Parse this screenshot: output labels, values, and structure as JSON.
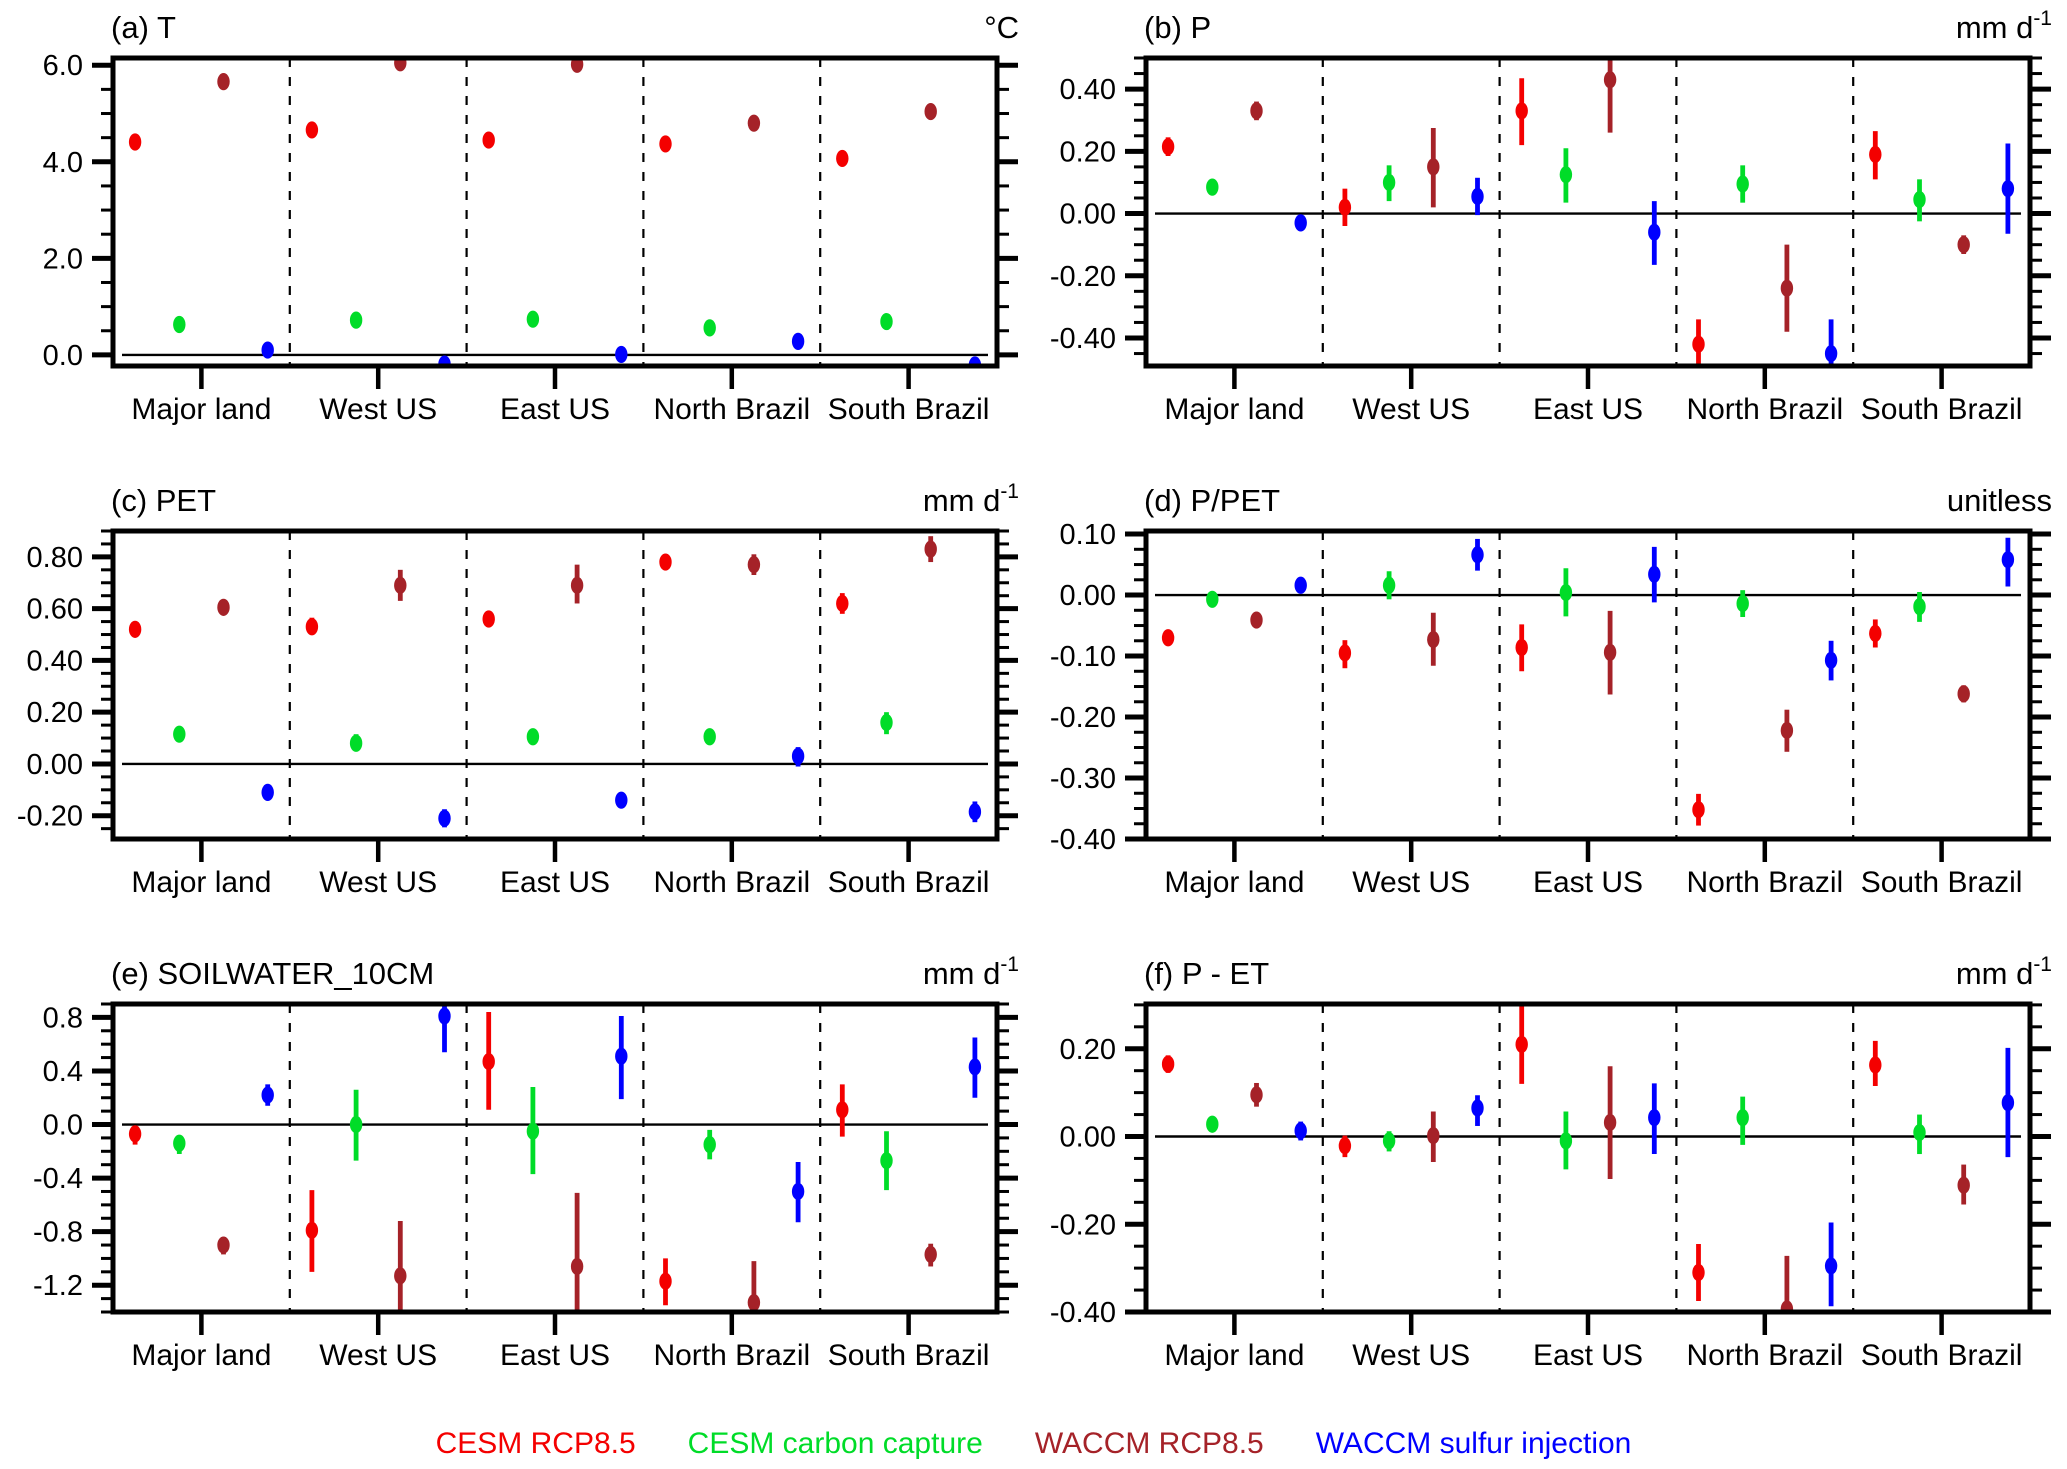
{
  "legend": {
    "items": [
      {
        "label": "CESM RCP8.5",
        "color": "#F40000"
      },
      {
        "label": "CESM carbon capture",
        "color": "#00DC28"
      },
      {
        "label": "WACCM RCP8.5",
        "color": "#A52228"
      },
      {
        "label": "WACCM sulfur injection",
        "color": "#0000FF"
      }
    ]
  },
  "chart_data": {
    "type": "scatter",
    "subtype": "multi-panel point-with-error-bar anomaly plot",
    "legend_position": "bottom",
    "grid": false,
    "categories": [
      "Major land",
      "West US",
      "East US",
      "North Brazil",
      "South Brazil"
    ],
    "series_names": [
      "CESM RCP8.5",
      "CESM carbon capture",
      "WACCM RCP8.5",
      "WACCM sulfur injection"
    ],
    "series_colors": [
      "#F40000",
      "#00DC28",
      "#A52228",
      "#0000FF"
    ],
    "panels": [
      {
        "id": "a",
        "title": "(a) T",
        "unit": "°C",
        "unit_sup": "",
        "ylim": [
          -0.23,
          6.15
        ],
        "yticks": [
          0.0,
          2.0,
          4.0,
          6.0
        ],
        "ytick_labels": [
          "0.0",
          "2.0",
          "4.0",
          "6.0"
        ],
        "yminor_step": 0.5,
        "series": [
          {
            "name": "CESM RCP8.5",
            "color": "#F40000",
            "points": [
              [
                4.41,
                4.32,
                4.5
              ],
              [
                4.66,
                4.52,
                4.8
              ],
              [
                4.45,
                4.34,
                4.56
              ],
              [
                4.37,
                4.26,
                4.48
              ],
              [
                4.07,
                3.95,
                4.19
              ]
            ]
          },
          {
            "name": "CESM carbon capture",
            "color": "#00DC28",
            "points": [
              [
                0.63,
                0.54,
                0.72
              ],
              [
                0.72,
                0.6,
                0.84
              ],
              [
                0.74,
                0.63,
                0.85
              ],
              [
                0.56,
                0.47,
                0.65
              ],
              [
                0.69,
                0.57,
                0.81
              ]
            ]
          },
          {
            "name": "WACCM RCP8.5",
            "color": "#A52228",
            "points": [
              [
                5.66,
                5.57,
                5.75
              ],
              [
                6.05,
                5.92,
                6.18
              ],
              [
                6.02,
                5.87,
                6.18
              ],
              [
                4.8,
                4.7,
                4.9
              ],
              [
                5.04,
                4.91,
                5.17
              ]
            ]
          },
          {
            "name": "WACCM sulfur injection",
            "color": "#0000FF",
            "points": [
              [
                0.1,
                0.02,
                0.18
              ],
              [
                -0.19,
                -0.26,
                -0.08
              ],
              [
                0.01,
                -0.09,
                0.11
              ],
              [
                0.28,
                0.19,
                0.38
              ],
              [
                -0.21,
                -0.29,
                -0.11
              ]
            ]
          }
        ]
      },
      {
        "id": "b",
        "title": "(b) P",
        "unit": "mm d",
        "unit_sup": "-1",
        "ylim": [
          -0.49,
          0.5
        ],
        "yticks": [
          -0.4,
          -0.2,
          0.0,
          0.2,
          0.4
        ],
        "ytick_labels": [
          "-0.40",
          "-0.20",
          "0.00",
          "0.20",
          "0.40"
        ],
        "yminor_step": 0.05,
        "series": [
          {
            "name": "CESM RCP8.5",
            "color": "#F40000",
            "points": [
              [
                0.215,
                0.185,
                0.245
              ],
              [
                0.02,
                -0.04,
                0.08
              ],
              [
                0.33,
                0.22,
                0.435
              ],
              [
                -0.42,
                -0.505,
                -0.34
              ],
              [
                0.19,
                0.11,
                0.265
              ]
            ]
          },
          {
            "name": "CESM carbon capture",
            "color": "#00DC28",
            "points": [
              [
                0.085,
                0.065,
                0.105
              ],
              [
                0.1,
                0.04,
                0.155
              ],
              [
                0.125,
                0.035,
                0.21
              ],
              [
                0.095,
                0.035,
                0.155
              ],
              [
                0.045,
                -0.025,
                0.11
              ]
            ]
          },
          {
            "name": "WACCM RCP8.5",
            "color": "#A52228",
            "points": [
              [
                0.33,
                0.3,
                0.36
              ],
              [
                0.15,
                0.02,
                0.275
              ],
              [
                0.43,
                0.26,
                0.51
              ],
              [
                -0.24,
                -0.38,
                -0.1
              ],
              [
                -0.1,
                -0.13,
                -0.07
              ]
            ]
          },
          {
            "name": "WACCM sulfur injection",
            "color": "#0000FF",
            "points": [
              [
                -0.03,
                -0.055,
                -0.005
              ],
              [
                0.055,
                -0.005,
                0.115
              ],
              [
                -0.06,
                -0.165,
                0.04
              ],
              [
                -0.45,
                -0.52,
                -0.34
              ],
              [
                0.08,
                -0.065,
                0.225
              ]
            ]
          }
        ]
      },
      {
        "id": "c",
        "title": "(c) PET",
        "unit": "mm d",
        "unit_sup": "-1",
        "ylim": [
          -0.29,
          0.9
        ],
        "yticks": [
          -0.2,
          0.0,
          0.2,
          0.4,
          0.6,
          0.8
        ],
        "ytick_labels": [
          "-0.20",
          "0.00",
          "0.20",
          "0.40",
          "0.60",
          "0.80"
        ],
        "yminor_step": 0.05,
        "series": [
          {
            "name": "CESM RCP8.5",
            "color": "#F40000",
            "points": [
              [
                0.52,
                0.49,
                0.55
              ],
              [
                0.53,
                0.5,
                0.565
              ],
              [
                0.56,
                0.53,
                0.59
              ],
              [
                0.78,
                0.75,
                0.81
              ],
              [
                0.62,
                0.58,
                0.66
              ]
            ]
          },
          {
            "name": "CESM carbon capture",
            "color": "#00DC28",
            "points": [
              [
                0.115,
                0.09,
                0.14
              ],
              [
                0.08,
                0.05,
                0.115
              ],
              [
                0.105,
                0.08,
                0.135
              ],
              [
                0.105,
                0.08,
                0.13
              ],
              [
                0.16,
                0.115,
                0.2
              ]
            ]
          },
          {
            "name": "WACCM RCP8.5",
            "color": "#A52228",
            "points": [
              [
                0.605,
                0.58,
                0.63
              ],
              [
                0.69,
                0.63,
                0.75
              ],
              [
                0.69,
                0.62,
                0.77
              ],
              [
                0.77,
                0.73,
                0.81
              ],
              [
                0.83,
                0.78,
                0.88
              ]
            ]
          },
          {
            "name": "WACCM sulfur injection",
            "color": "#0000FF",
            "points": [
              [
                -0.11,
                -0.135,
                -0.085
              ],
              [
                -0.21,
                -0.245,
                -0.175
              ],
              [
                -0.14,
                -0.17,
                -0.11
              ],
              [
                0.03,
                -0.01,
                0.065
              ],
              [
                -0.185,
                -0.225,
                -0.145
              ]
            ]
          }
        ]
      },
      {
        "id": "d",
        "title": "(d) P/PET",
        "unit": "unitless",
        "unit_sup": "",
        "ylim": [
          -0.4,
          0.105
        ],
        "yticks": [
          -0.4,
          -0.3,
          -0.2,
          -0.1,
          0.0,
          0.1
        ],
        "ytick_labels": [
          "-0.40",
          "-0.30",
          "-0.20",
          "-0.10",
          "0.00",
          "0.10"
        ],
        "yminor_step": 0.025,
        "series": [
          {
            "name": "CESM RCP8.5",
            "color": "#F40000",
            "points": [
              [
                -0.07,
                -0.082,
                -0.058
              ],
              [
                -0.095,
                -0.12,
                -0.074
              ],
              [
                -0.086,
                -0.125,
                -0.048
              ],
              [
                -0.352,
                -0.378,
                -0.326
              ],
              [
                -0.063,
                -0.086,
                -0.04
              ]
            ]
          },
          {
            "name": "CESM carbon capture",
            "color": "#00DC28",
            "points": [
              [
                -0.007,
                -0.018,
                0.004
              ],
              [
                0.016,
                -0.007,
                0.039
              ],
              [
                0.004,
                -0.035,
                0.044
              ],
              [
                -0.014,
                -0.036,
                0.008
              ],
              [
                -0.019,
                -0.044,
                0.005
              ]
            ]
          },
          {
            "name": "WACCM RCP8.5",
            "color": "#A52228",
            "points": [
              [
                -0.041,
                -0.053,
                -0.029
              ],
              [
                -0.073,
                -0.116,
                -0.029
              ],
              [
                -0.094,
                -0.163,
                -0.026
              ],
              [
                -0.222,
                -0.257,
                -0.188
              ],
              [
                -0.162,
                -0.176,
                -0.148
              ]
            ]
          },
          {
            "name": "WACCM sulfur injection",
            "color": "#0000FF",
            "points": [
              [
                0.016,
                0.005,
                0.027
              ],
              [
                0.066,
                0.04,
                0.092
              ],
              [
                0.034,
                -0.012,
                0.079
              ],
              [
                -0.107,
                -0.14,
                -0.075
              ],
              [
                0.058,
                0.014,
                0.094
              ]
            ]
          }
        ]
      },
      {
        "id": "e",
        "title": "(e) SOILWATER_10CM",
        "unit": "mm d",
        "unit_sup": "-1",
        "ylim": [
          -1.4,
          0.9
        ],
        "yticks": [
          -1.2,
          -0.8,
          -0.4,
          0.0,
          0.4,
          0.8
        ],
        "ytick_labels": [
          "-1.2",
          "-0.8",
          "-0.4",
          "0.0",
          "0.4",
          "0.8"
        ],
        "yminor_step": 0.1,
        "series": [
          {
            "name": "CESM RCP8.5",
            "color": "#F40000",
            "points": [
              [
                -0.07,
                -0.15,
                -0.01
              ],
              [
                -0.79,
                -1.1,
                -0.49
              ],
              [
                0.47,
                0.11,
                0.84
              ],
              [
                -1.17,
                -1.35,
                -1.0
              ],
              [
                0.11,
                -0.09,
                0.3
              ]
            ]
          },
          {
            "name": "CESM carbon capture",
            "color": "#00DC28",
            "points": [
              [
                -0.14,
                -0.22,
                -0.09
              ],
              [
                0.0,
                -0.27,
                0.26
              ],
              [
                -0.05,
                -0.37,
                0.28
              ],
              [
                -0.15,
                -0.26,
                -0.04
              ],
              [
                -0.27,
                -0.49,
                -0.05
              ]
            ]
          },
          {
            "name": "WACCM RCP8.5",
            "color": "#A52228",
            "points": [
              [
                -0.9,
                -0.97,
                -0.84
              ],
              [
                -1.13,
                -1.46,
                -0.72
              ],
              [
                -1.06,
                -1.46,
                -0.51
              ],
              [
                -1.33,
                -1.46,
                -1.02
              ],
              [
                -0.97,
                -1.06,
                -0.89
              ]
            ]
          },
          {
            "name": "WACCM sulfur injection",
            "color": "#0000FF",
            "points": [
              [
                0.22,
                0.14,
                0.3
              ],
              [
                0.81,
                0.54,
                0.93
              ],
              [
                0.51,
                0.19,
                0.81
              ],
              [
                -0.5,
                -0.73,
                -0.28
              ],
              [
                0.43,
                0.2,
                0.65
              ]
            ]
          }
        ]
      },
      {
        "id": "f",
        "title": "(f) P - ET",
        "unit": "mm d",
        "unit_sup": "-1",
        "ylim": [
          -0.4,
          0.302
        ],
        "yticks": [
          -0.4,
          -0.2,
          0.0,
          0.2
        ],
        "ytick_labels": [
          "-0.40",
          "-0.20",
          "0.00",
          "0.20"
        ],
        "yminor_step": 0.05,
        "series": [
          {
            "name": "CESM RCP8.5",
            "color": "#F40000",
            "points": [
              [
                0.165,
                0.145,
                0.185
              ],
              [
                -0.021,
                -0.047,
                0.002
              ],
              [
                0.21,
                0.12,
                0.31
              ],
              [
                -0.31,
                -0.375,
                -0.245
              ],
              [
                0.163,
                0.115,
                0.218
              ]
            ]
          },
          {
            "name": "CESM carbon capture",
            "color": "#00DC28",
            "points": [
              [
                0.028,
                0.013,
                0.042
              ],
              [
                -0.01,
                -0.034,
                0.012
              ],
              [
                -0.01,
                -0.075,
                0.057
              ],
              [
                0.043,
                -0.019,
                0.091
              ],
              [
                0.009,
                -0.04,
                0.05
              ]
            ]
          },
          {
            "name": "WACCM RCP8.5",
            "color": "#A52228",
            "points": [
              [
                0.095,
                0.068,
                0.122
              ],
              [
                0.002,
                -0.058,
                0.057
              ],
              [
                0.032,
                -0.097,
                0.16
              ],
              [
                -0.393,
                -0.43,
                -0.272
              ],
              [
                -0.111,
                -0.155,
                -0.064
              ]
            ]
          },
          {
            "name": "WACCM sulfur injection",
            "color": "#0000FF",
            "points": [
              [
                0.013,
                -0.009,
                0.034
              ],
              [
                0.065,
                0.024,
                0.094
              ],
              [
                0.043,
                -0.04,
                0.121
              ],
              [
                -0.295,
                -0.387,
                -0.196
              ],
              [
                0.077,
                -0.047,
                0.202
              ]
            ]
          }
        ]
      }
    ]
  }
}
